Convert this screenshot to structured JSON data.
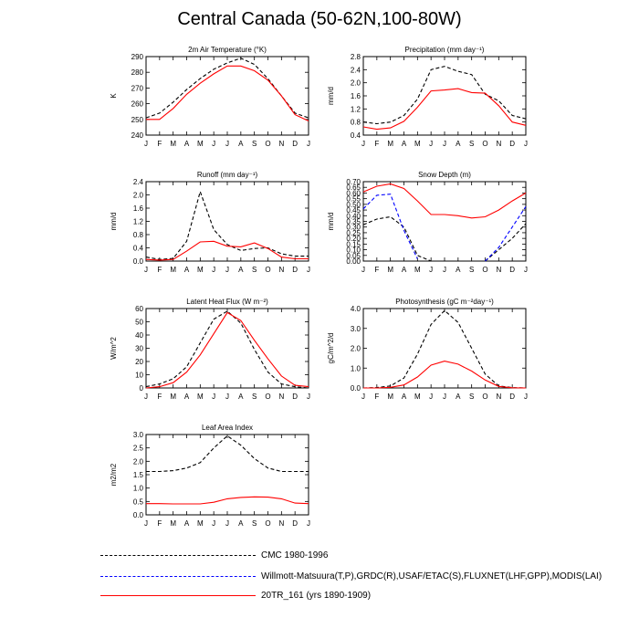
{
  "figure_title": "Central Canada (50-62N,100-80W)",
  "legend": [
    {
      "label": "CMC 1980-1996",
      "color": "#000000",
      "style": "dashed"
    },
    {
      "label": "Willmott-Matsuura(T,P),GRDC(R),USAF/ETAC(S),FLUXNET(LHF,GPP),MODIS(LAI)",
      "color": "#0000ff",
      "style": "dashed"
    },
    {
      "label": "20TR_161 (yrs 1890-1909)",
      "color": "#ff0000",
      "style": "solid"
    }
  ],
  "chart_data": [
    {
      "type": "line",
      "title": "2m Air Temperature (°K)",
      "ylabel": "K",
      "categories": [
        "J",
        "F",
        "M",
        "A",
        "M",
        "J",
        "J",
        "A",
        "S",
        "O",
        "N",
        "D",
        "J"
      ],
      "ylim": [
        240,
        290
      ],
      "yticks": [
        240,
        250,
        260,
        270,
        280,
        290
      ],
      "yticklabels": [
        "240",
        "250",
        "260",
        "270",
        "280",
        "290"
      ],
      "series": [
        {
          "name": "CMC 1980-1996",
          "color": "#000000",
          "style": "dashed",
          "values": [
            251,
            254,
            261,
            269,
            276,
            282,
            286,
            289,
            285,
            276,
            265,
            254,
            251
          ]
        },
        {
          "name": "20TR_161 (yrs 1890-1909)",
          "color": "#ff0000",
          "style": "solid",
          "values": [
            250,
            250,
            257,
            266,
            273,
            279,
            284,
            284,
            281,
            275,
            265,
            253,
            249
          ]
        }
      ]
    },
    {
      "type": "line",
      "title": "Precipitation (mm day⁻¹)",
      "ylabel": "mm/d",
      "categories": [
        "J",
        "F",
        "M",
        "A",
        "M",
        "J",
        "J",
        "A",
        "S",
        "O",
        "N",
        "D",
        "J"
      ],
      "ylim": [
        0.4,
        2.8
      ],
      "yticks": [
        0.4,
        0.8,
        1.2,
        1.6,
        2.0,
        2.4,
        2.8
      ],
      "yticklabels": [
        "0.4",
        "0.8",
        "1.2",
        "1.6",
        "2.0",
        "2.4",
        "2.8"
      ],
      "series": [
        {
          "name": "CMC 1980-1996",
          "color": "#000000",
          "style": "dashed",
          "values": [
            0.8,
            0.75,
            0.8,
            1.0,
            1.5,
            2.4,
            2.5,
            2.35,
            2.25,
            1.65,
            1.45,
            1.0,
            0.9
          ]
        },
        {
          "name": "20TR_161 (yrs 1890-1909)",
          "color": "#ff0000",
          "style": "solid",
          "values": [
            0.65,
            0.58,
            0.62,
            0.82,
            1.25,
            1.75,
            1.78,
            1.82,
            1.7,
            1.68,
            1.3,
            0.8,
            0.7
          ]
        }
      ]
    },
    {
      "type": "line",
      "title": "Runoff (mm day⁻¹)",
      "ylabel": "mm/d",
      "categories": [
        "J",
        "F",
        "M",
        "A",
        "M",
        "J",
        "J",
        "A",
        "S",
        "O",
        "N",
        "D",
        "J"
      ],
      "ylim": [
        0.0,
        2.4
      ],
      "yticks": [
        0.0,
        0.4,
        0.8,
        1.2,
        1.6,
        2.0,
        2.4
      ],
      "yticklabels": [
        "0.0",
        "0.4",
        "0.8",
        "1.2",
        "1.6",
        "2.0",
        "2.4"
      ],
      "series": [
        {
          "name": "CMC 1980-1996",
          "color": "#000000",
          "style": "dashed",
          "values": [
            0.12,
            0.05,
            0.08,
            0.6,
            2.1,
            0.95,
            0.5,
            0.32,
            0.38,
            0.4,
            0.22,
            0.15,
            0.15
          ]
        },
        {
          "name": "20TR_161 (yrs 1890-1909)",
          "color": "#ff0000",
          "style": "solid",
          "values": [
            0.05,
            0.03,
            0.05,
            0.3,
            0.58,
            0.6,
            0.45,
            0.43,
            0.55,
            0.38,
            0.12,
            0.07,
            0.07
          ]
        }
      ]
    },
    {
      "type": "line",
      "title": "Snow Depth (m)",
      "ylabel": "mm/d",
      "categories": [
        "J",
        "F",
        "M",
        "A",
        "M",
        "J",
        "J",
        "A",
        "S",
        "O",
        "N",
        "D",
        "J"
      ],
      "ylim": [
        0.0,
        0.7
      ],
      "yticks": [
        0.0,
        0.05,
        0.1,
        0.15,
        0.2,
        0.25,
        0.3,
        0.35,
        0.4,
        0.45,
        0.5,
        0.55,
        0.6,
        0.65,
        0.7
      ],
      "yticklabels": [
        "0.00",
        "0.05",
        "0.10",
        "0.15",
        "0.20",
        "0.25",
        "0.30",
        "0.35",
        "0.40",
        "0.45",
        "0.50",
        "0.55",
        "0.60",
        "0.65",
        "0.70"
      ],
      "series": [
        {
          "name": "CMC 1980-1996",
          "color": "#000000",
          "style": "dashed",
          "values": [
            0.32,
            0.37,
            0.39,
            0.3,
            0.05,
            0.0,
            null,
            null,
            null,
            0.0,
            0.1,
            0.2,
            0.33
          ]
        },
        {
          "name": "Willmott-Matsuura(T,P),GRDC(R),USAF/ETAC(S),FLUXNET(LHF,GPP),MODIS(LAI)",
          "color": "#0000ff",
          "style": "dashed",
          "values": [
            0.46,
            0.58,
            0.59,
            0.27,
            0.02,
            null,
            null,
            null,
            null,
            0.0,
            0.12,
            0.3,
            0.48
          ]
        },
        {
          "name": "20TR_161 (yrs 1890-1909)",
          "color": "#ff0000",
          "style": "solid",
          "values": [
            0.61,
            0.66,
            0.68,
            0.64,
            0.53,
            0.41,
            0.41,
            0.4,
            0.38,
            0.39,
            0.45,
            0.53,
            0.6
          ]
        }
      ]
    },
    {
      "type": "line",
      "title": "Latent Heat Flux (W m⁻²)",
      "ylabel": "W/m^2",
      "categories": [
        "J",
        "F",
        "M",
        "A",
        "M",
        "J",
        "J",
        "A",
        "S",
        "O",
        "N",
        "D",
        "J"
      ],
      "ylim": [
        0,
        60
      ],
      "yticks": [
        0,
        10,
        20,
        30,
        40,
        50,
        60
      ],
      "yticklabels": [
        "0",
        "10",
        "20",
        "30",
        "40",
        "50",
        "60"
      ],
      "series": [
        {
          "name": "CMC 1980-1996",
          "color": "#000000",
          "style": "dashed",
          "values": [
            1,
            3,
            7,
            16,
            34,
            52,
            58,
            49,
            29,
            12,
            3,
            1,
            0
          ]
        },
        {
          "name": "20TR_161 (yrs 1890-1909)",
          "color": "#ff0000",
          "style": "solid",
          "values": [
            0,
            1,
            4,
            12,
            25,
            41,
            57,
            51,
            36,
            22,
            9,
            2,
            1
          ]
        }
      ]
    },
    {
      "type": "line",
      "title": "Photosynthesis (gC m⁻²day⁻¹)",
      "ylabel": "gC/m^2/d",
      "categories": [
        "J",
        "F",
        "M",
        "A",
        "M",
        "J",
        "J",
        "A",
        "S",
        "O",
        "N",
        "D",
        "J"
      ],
      "ylim": [
        0.0,
        4.0
      ],
      "yticks": [
        0.0,
        1.0,
        2.0,
        3.0,
        4.0
      ],
      "yticklabels": [
        "0.0",
        "1.0",
        "2.0",
        "3.0",
        "4.0"
      ],
      "series": [
        {
          "name": "CMC 1980-1996",
          "color": "#000000",
          "style": "dashed",
          "values": [
            0.0,
            0.02,
            0.1,
            0.5,
            1.7,
            3.2,
            3.9,
            3.3,
            2.0,
            0.7,
            0.1,
            0.02,
            0.0
          ]
        },
        {
          "name": "20TR_161 (yrs 1890-1909)",
          "color": "#ff0000",
          "style": "solid",
          "values": [
            0.0,
            0.0,
            0.03,
            0.15,
            0.55,
            1.15,
            1.35,
            1.2,
            0.85,
            0.4,
            0.08,
            0.01,
            0.0
          ]
        }
      ]
    },
    {
      "type": "line",
      "title": "Leaf Area Index",
      "ylabel": "m2/m2",
      "categories": [
        "J",
        "F",
        "M",
        "A",
        "M",
        "J",
        "J",
        "A",
        "S",
        "O",
        "N",
        "D",
        "J"
      ],
      "ylim": [
        0.0,
        3.0
      ],
      "yticks": [
        0.0,
        0.5,
        1.0,
        1.5,
        2.0,
        2.5,
        3.0
      ],
      "yticklabels": [
        "0.0",
        "0.5",
        "1.0",
        "1.5",
        "2.0",
        "2.5",
        "3.0"
      ],
      "series": [
        {
          "name": "CMC 1980-1996",
          "color": "#000000",
          "style": "dashed",
          "values": [
            1.62,
            1.62,
            1.65,
            1.75,
            1.95,
            2.5,
            2.95,
            2.6,
            2.1,
            1.75,
            1.62,
            1.62,
            1.62
          ]
        },
        {
          "name": "20TR_161 (yrs 1890-1909)",
          "color": "#ff0000",
          "style": "solid",
          "values": [
            0.42,
            0.42,
            0.41,
            0.41,
            0.41,
            0.47,
            0.6,
            0.65,
            0.67,
            0.66,
            0.6,
            0.44,
            0.42
          ]
        }
      ]
    }
  ]
}
